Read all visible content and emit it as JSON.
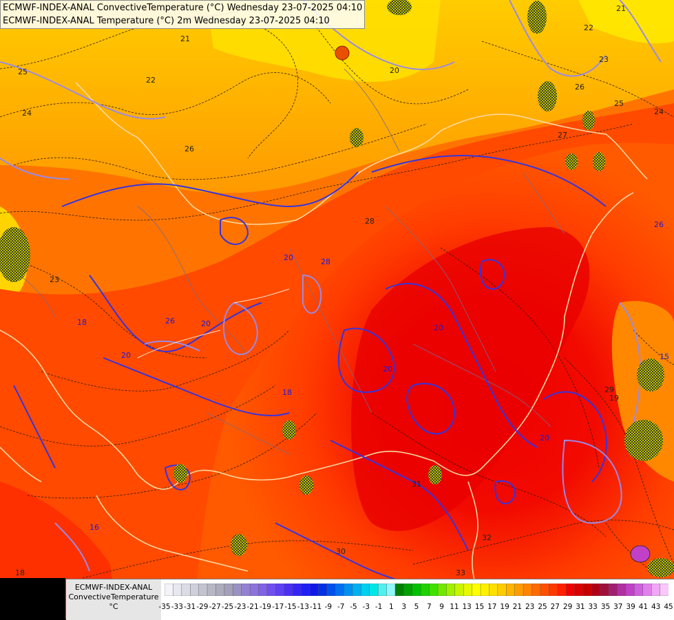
{
  "titles": {
    "line1": "ECMWF-INDEX-ANAL ConvectiveTemperature (°C) Wednesday 23-07-2025 04:10",
    "line2": "ECMWF-INDEX-ANAL Temperature (°C) 2m Wednesday 23-07-2025 04:10"
  },
  "legend": {
    "label_line1": "ECMWF-INDEX-ANAL",
    "label_line2": "ConvectiveTemperature",
    "label_line3": "°C",
    "ticks": [
      "-35",
      "-33",
      "-31",
      "-29",
      "-27",
      "-25",
      "-23",
      "-21",
      "-19",
      "-17",
      "-15",
      "-13",
      "-11",
      "-9",
      "-7",
      "-5",
      "-3",
      "-1",
      "1",
      "3",
      "5",
      "7",
      "9",
      "11",
      "13",
      "15",
      "17",
      "19",
      "21",
      "23",
      "25",
      "27",
      "29",
      "31",
      "33",
      "35",
      "37",
      "39",
      "41",
      "43",
      "45"
    ],
    "colors": [
      "#f3f3f8",
      "#e8e8f0",
      "#dcdce6",
      "#cfcfdb",
      "#c3c3cf",
      "#b7b7c4",
      "#acacbc",
      "#a3a0b8",
      "#9b92c4",
      "#9482d0",
      "#8c73dc",
      "#8062e4",
      "#7050ec",
      "#5f40f2",
      "#4a30f4",
      "#3525f4",
      "#2020f0",
      "#1018e8",
      "#0030e8",
      "#0050ec",
      "#0070f0",
      "#0090f2",
      "#00b0f0",
      "#00cff0",
      "#00e6e6",
      "#50f0f0",
      "#90f8f8",
      "#008000",
      "#00a000",
      "#00c000",
      "#20d000",
      "#40e000",
      "#70e800",
      "#a0f000",
      "#c8f400",
      "#e8f800",
      "#ffff00",
      "#fff000",
      "#ffe000",
      "#ffcc00",
      "#ffb400",
      "#ff9c00",
      "#ff8400",
      "#ff6a00",
      "#ff5000",
      "#ff3a00",
      "#ff2000",
      "#f00000",
      "#dc0000",
      "#c40000",
      "#b00018",
      "#a0103c",
      "#a02070",
      "#b030a0",
      "#c040c8",
      "#d060e0",
      "#e080ec",
      "#f0a8f4",
      "#f8c8f8"
    ]
  },
  "contour_labels": {
    "black": [
      "25",
      "24",
      "23",
      "22",
      "21",
      "20",
      "21",
      "22",
      "23",
      "24",
      "25",
      "26",
      "27",
      "28",
      "30",
      "32",
      "31",
      "33",
      "29",
      "19",
      "18",
      "26"
    ],
    "blue": [
      "18",
      "20",
      "28",
      "26",
      "20",
      "20",
      "20",
      "18",
      "16",
      "20",
      "26",
      "15",
      "20"
    ]
  }
}
